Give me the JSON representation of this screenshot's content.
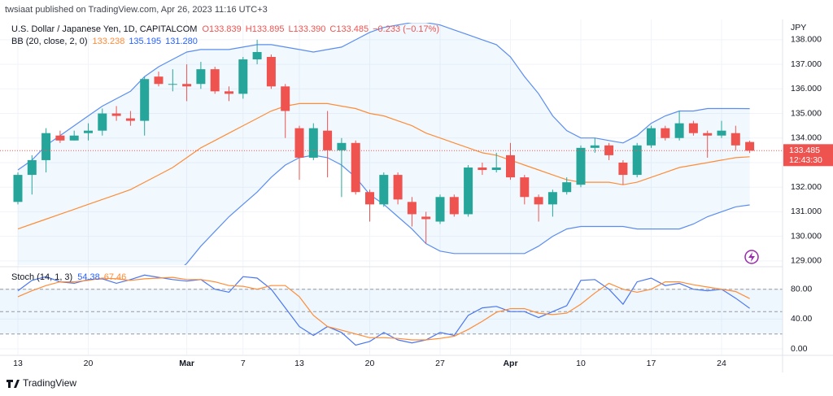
{
  "header": {
    "published": "twsiaat published on TradingView.com, Apr 26, 2023 11:16 UTC+3",
    "brand": "TradingView"
  },
  "chart_data": [
    {
      "type": "candlestick",
      "title": "U.S. Dollar / Japanese Yen, 1D, CAPITALCOM",
      "legend": [
        "O133.839",
        "H133.895",
        "L133.390",
        "C133.485",
        "−0.233 (−0.17%)"
      ],
      "currency": "JPY",
      "countdown": "12:43:30",
      "up_color": "#26a69a",
      "down_color": "#ef5350",
      "categories": [
        "13",
        null,
        null,
        null,
        null,
        "20",
        null,
        null,
        null,
        null,
        null,
        null,
        "Mar",
        null,
        null,
        null,
        "7",
        null,
        null,
        null,
        "13",
        null,
        null,
        null,
        null,
        "20",
        null,
        null,
        null,
        null,
        "27",
        null,
        null,
        null,
        null,
        "Apr",
        null,
        null,
        null,
        null,
        "10",
        null,
        null,
        null,
        null,
        "17",
        null,
        null,
        null,
        null,
        "24",
        null,
        null
      ],
      "open": [
        131.4,
        132.5,
        133.1,
        134.1,
        133.9,
        134.2,
        134.3,
        135.0,
        134.8,
        134.7,
        136.5,
        136.2,
        136.2,
        136.2,
        136.8,
        135.9,
        135.8,
        137.2,
        137.3,
        136.1,
        134.4,
        133.2,
        134.3,
        133.5,
        133.8,
        131.8,
        131.3,
        132.5,
        131.4,
        130.8,
        130.6,
        131.6,
        130.9,
        132.8,
        132.7,
        133.3,
        132.4,
        131.6,
        131.3,
        131.8,
        132.1,
        133.6,
        133.7,
        133.0,
        132.5,
        133.7,
        134.4,
        134.0,
        134.6,
        134.2,
        134.1,
        134.2,
        133.839
      ],
      "high": [
        132.6,
        133.3,
        134.4,
        134.3,
        134.3,
        134.6,
        135.2,
        135.3,
        135.1,
        136.5,
        136.7,
        136.8,
        137.0,
        137.1,
        136.9,
        136.1,
        137.3,
        138.0,
        137.4,
        136.2,
        134.5,
        134.6,
        135.1,
        134.0,
        133.9,
        131.9,
        132.6,
        132.6,
        131.6,
        131.0,
        131.7,
        131.7,
        132.9,
        133.0,
        133.4,
        133.8,
        132.5,
        131.7,
        131.9,
        132.4,
        133.7,
        134.0,
        133.8,
        133.1,
        133.8,
        134.5,
        134.5,
        135.1,
        134.7,
        134.3,
        134.7,
        134.5,
        133.895
      ],
      "low": [
        131.3,
        131.7,
        132.6,
        133.8,
        133.9,
        133.9,
        134.1,
        134.7,
        134.5,
        134.1,
        136.1,
        135.9,
        135.5,
        136.0,
        135.8,
        135.5,
        135.6,
        137.0,
        136.0,
        134.0,
        132.3,
        133.1,
        132.4,
        131.6,
        131.7,
        130.6,
        131.2,
        131.3,
        130.4,
        129.7,
        130.5,
        130.8,
        130.8,
        132.5,
        132.6,
        132.3,
        131.3,
        130.6,
        130.8,
        131.7,
        132.0,
        133.4,
        133.1,
        132.1,
        132.4,
        133.6,
        133.9,
        133.9,
        134.1,
        133.2,
        134.0,
        133.5,
        133.39
      ],
      "close": [
        132.5,
        133.1,
        134.2,
        133.9,
        134.1,
        134.3,
        135.0,
        134.9,
        134.7,
        136.4,
        136.2,
        136.2,
        136.1,
        136.8,
        135.9,
        135.8,
        137.2,
        137.5,
        136.1,
        135.1,
        133.2,
        134.4,
        133.5,
        133.8,
        131.8,
        131.3,
        132.5,
        131.5,
        130.9,
        130.7,
        131.6,
        130.9,
        132.8,
        132.7,
        132.8,
        132.4,
        131.6,
        131.3,
        131.8,
        132.2,
        133.6,
        133.7,
        133.3,
        132.5,
        133.7,
        134.4,
        134.0,
        134.6,
        134.2,
        134.1,
        134.3,
        133.7,
        133.485
      ],
      "overlay": {
        "title": "BB (20, close, 2, 0)",
        "legend": [
          "133.238",
          "135.195",
          "131.280"
        ],
        "fill": "#2196f3",
        "basis": {
          "color": "#ff8c37",
          "values": [
            130.3,
            130.5,
            130.7,
            130.9,
            131.1,
            131.3,
            131.5,
            131.7,
            131.9,
            132.2,
            132.5,
            132.8,
            133.2,
            133.6,
            133.9,
            134.2,
            134.5,
            134.8,
            135.1,
            135.3,
            135.4,
            135.4,
            135.4,
            135.3,
            135.2,
            135.0,
            134.9,
            134.7,
            134.5,
            134.2,
            134.0,
            133.8,
            133.6,
            133.4,
            133.3,
            133.1,
            132.9,
            132.7,
            132.5,
            132.3,
            132.2,
            132.2,
            132.2,
            132.1,
            132.2,
            132.4,
            132.6,
            132.8,
            132.9,
            133.0,
            133.1,
            133.2,
            133.238
          ]
        },
        "upper": {
          "color": "#5b8def",
          "values": [
            132.7,
            133.1,
            133.7,
            134.1,
            134.5,
            134.9,
            135.3,
            135.6,
            135.9,
            136.5,
            136.9,
            137.2,
            137.5,
            137.6,
            137.6,
            137.6,
            137.7,
            137.8,
            137.8,
            137.7,
            137.6,
            137.5,
            137.6,
            137.7,
            138.0,
            138.3,
            138.5,
            138.6,
            138.7,
            138.7,
            138.6,
            138.4,
            138.2,
            138.0,
            137.8,
            137.3,
            136.5,
            135.8,
            134.9,
            134.3,
            134.0,
            134.0,
            133.9,
            133.8,
            134.1,
            134.6,
            134.9,
            135.1,
            135.1,
            135.2,
            135.2,
            135.2,
            135.195
          ]
        },
        "lower": {
          "color": "#5b8def",
          "values": [
            127.9,
            127.9,
            127.7,
            127.7,
            127.7,
            127.7,
            127.7,
            127.8,
            127.9,
            127.9,
            128.1,
            128.4,
            128.9,
            129.6,
            130.2,
            130.8,
            131.3,
            131.8,
            132.4,
            132.9,
            133.2,
            133.3,
            133.2,
            132.9,
            132.4,
            131.7,
            131.3,
            130.8,
            130.3,
            129.7,
            129.4,
            129.3,
            129.3,
            129.3,
            129.3,
            129.3,
            129.3,
            129.6,
            130.0,
            130.3,
            130.4,
            130.4,
            130.4,
            130.4,
            130.3,
            130.3,
            130.3,
            130.3,
            130.5,
            130.8,
            131.0,
            131.2,
            131.28
          ]
        }
      },
      "ylim": [
        128.83,
        138.69
      ],
      "yticks": [
        {
          "value": 129,
          "label": "129.000"
        },
        {
          "value": 130,
          "label": "130.000"
        },
        {
          "value": 131,
          "label": "131.000"
        },
        {
          "value": 132,
          "label": "132.000"
        },
        {
          "value": 133,
          "label": "133.000"
        },
        {
          "value": 134,
          "label": "134.000"
        },
        {
          "value": 135,
          "label": "135.000"
        },
        {
          "value": 136,
          "label": "136.000"
        },
        {
          "value": 137,
          "label": "137.000"
        },
        {
          "value": 138,
          "label": "138.000"
        }
      ],
      "grid": true
    },
    {
      "type": "line",
      "title": "Stoch (14, 1, 3)",
      "series": [
        {
          "color": "#4a76f0",
          "values": [
            78,
            92,
            97,
            90,
            88,
            93,
            94,
            88,
            93,
            99,
            96,
            93,
            91,
            93,
            80,
            76,
            97,
            95,
            80,
            55,
            30,
            18,
            30,
            22,
            5,
            10,
            22,
            12,
            8,
            12,
            22,
            18,
            45,
            55,
            57,
            50,
            50,
            42,
            50,
            58,
            92,
            93,
            80,
            60,
            90,
            95,
            85,
            88,
            80,
            78,
            80,
            68,
            54.38
          ]
        },
        {
          "color": "#ff8c37",
          "values": [
            70,
            78,
            85,
            90,
            90,
            92,
            95,
            94,
            92,
            94,
            95,
            96,
            93,
            93,
            90,
            85,
            84,
            80,
            85,
            85,
            70,
            45,
            30,
            25,
            20,
            15,
            15,
            14,
            12,
            12,
            14,
            17,
            26,
            37,
            49,
            54,
            54,
            48,
            46,
            48,
            60,
            75,
            88,
            80,
            76,
            80,
            90,
            90,
            86,
            83,
            80,
            77,
            67.46
          ]
        }
      ],
      "band_levels": [
        20,
        50,
        80
      ],
      "band_fill": "#2196f3",
      "ylim": [
        -7.6,
        108.1
      ],
      "yticks": [
        {
          "value": 80,
          "label": "80.00"
        },
        {
          "value": 40,
          "label": "40.00"
        },
        {
          "value": 0,
          "label": "0.00"
        }
      ],
      "grid": true
    }
  ]
}
